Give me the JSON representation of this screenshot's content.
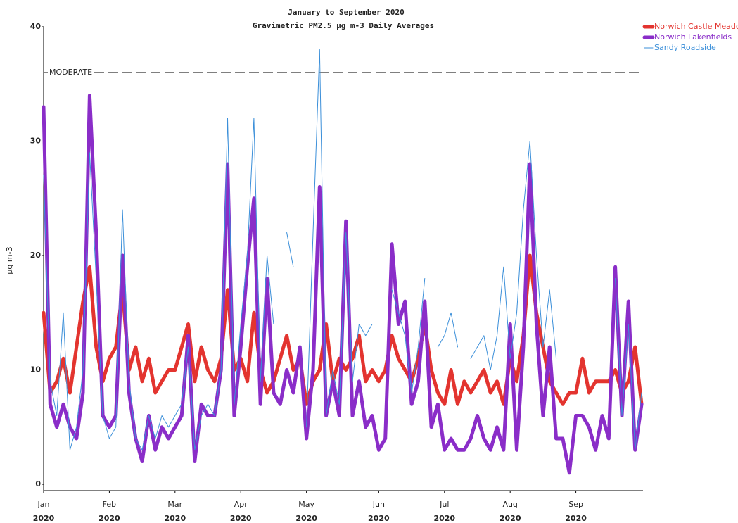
{
  "chart_data": {
    "type": "line",
    "title": "January to September 2020",
    "subtitle": "Gravimetric PM2.5 µg m-3  Daily Averages",
    "y_label": "µg m-3",
    "x_sublabel": "2020",
    "categories": [
      "Jan",
      null,
      null,
      null,
      null,
      null,
      null,
      null,
      null,
      null,
      "Feb",
      null,
      null,
      null,
      null,
      null,
      null,
      null,
      null,
      null,
      "Mar",
      null,
      null,
      null,
      null,
      null,
      null,
      null,
      null,
      null,
      "Apr",
      null,
      null,
      null,
      null,
      null,
      null,
      null,
      null,
      null,
      "May",
      null,
      null,
      null,
      null,
      null,
      null,
      null,
      null,
      null,
      null,
      "Jun",
      null,
      null,
      null,
      null,
      null,
      null,
      null,
      null,
      null,
      "Jul",
      null,
      null,
      null,
      null,
      null,
      null,
      null,
      null,
      null,
      "Aug",
      null,
      null,
      null,
      null,
      null,
      null,
      null,
      null,
      null,
      "Sep",
      null,
      null,
      null,
      null,
      null,
      null,
      null,
      null,
      null,
      null
    ],
    "series": [
      {
        "name": "Norwich Castle Meadow",
        "color": "#e3342f",
        "width": 5,
        "values": [
          15,
          8,
          9,
          11,
          8,
          12,
          16,
          19,
          12,
          9,
          11,
          12,
          17,
          10,
          12,
          9,
          11,
          8,
          9,
          10,
          10,
          12,
          14,
          9,
          12,
          10,
          9,
          11,
          17,
          10,
          11,
          9,
          15,
          10,
          8,
          9,
          11,
          13,
          10,
          11,
          7,
          9,
          10,
          14,
          9,
          11,
          10,
          11,
          13,
          9,
          10,
          9,
          10,
          13,
          11,
          10,
          9,
          11,
          14,
          10,
          8,
          7,
          10,
          7,
          9,
          8,
          9,
          10,
          8,
          9,
          7,
          11,
          9,
          13,
          20,
          15,
          12,
          9,
          8,
          7,
          8,
          8,
          11,
          8,
          9,
          9,
          9,
          10,
          8,
          9,
          12,
          7
        ]
      },
      {
        "name": "Norwich Lakenfields",
        "color": "#8a2dc8",
        "width": 5,
        "values": [
          33,
          7,
          5,
          7,
          5,
          4,
          8,
          34,
          22,
          6,
          5,
          6,
          20,
          8,
          4,
          2,
          6,
          3,
          5,
          4,
          5,
          6,
          13,
          2,
          7,
          6,
          6,
          10,
          28,
          6,
          12,
          19,
          25,
          7,
          18,
          8,
          7,
          10,
          8,
          12,
          4,
          10,
          26,
          6,
          9,
          6,
          23,
          6,
          9,
          5,
          6,
          3,
          4,
          21,
          14,
          16,
          7,
          9,
          16,
          5,
          7,
          3,
          4,
          3,
          3,
          4,
          6,
          4,
          3,
          5,
          3,
          14,
          3,
          12,
          28,
          14,
          6,
          12,
          4,
          4,
          1,
          6,
          6,
          5,
          3,
          6,
          4,
          19,
          6,
          16,
          3,
          7
        ]
      },
      {
        "name": "Sandy Roadside",
        "color": "#3b8fd9",
        "width": 1,
        "values": [
          27,
          9,
          6,
          15,
          3,
          5,
          10,
          29,
          18,
          6,
          4,
          5,
          24,
          9,
          4,
          3,
          6,
          4,
          6,
          5,
          6,
          7,
          12,
          3,
          6,
          7,
          6,
          10,
          32,
          7,
          14,
          20,
          32,
          9,
          20,
          14,
          null,
          22,
          19,
          null,
          5,
          22,
          38,
          6,
          10,
          7,
          22,
          9,
          14,
          13,
          14,
          null,
          null,
          17,
          15,
          13,
          8,
          12,
          18,
          null,
          12,
          13,
          15,
          12,
          null,
          11,
          12,
          13,
          10,
          13,
          19,
          11,
          15,
          24,
          30,
          20,
          12,
          17,
          11,
          null,
          null,
          null,
          null,
          null,
          null,
          null,
          null,
          18,
          6,
          14,
          3,
          8
        ]
      }
    ],
    "ylim": [
      0,
      40
    ],
    "yticks": [
      0,
      10,
      20,
      30,
      40
    ],
    "reference_lines": [
      {
        "value": 36,
        "label": "MODERATE"
      }
    ],
    "legend": "top-right"
  }
}
